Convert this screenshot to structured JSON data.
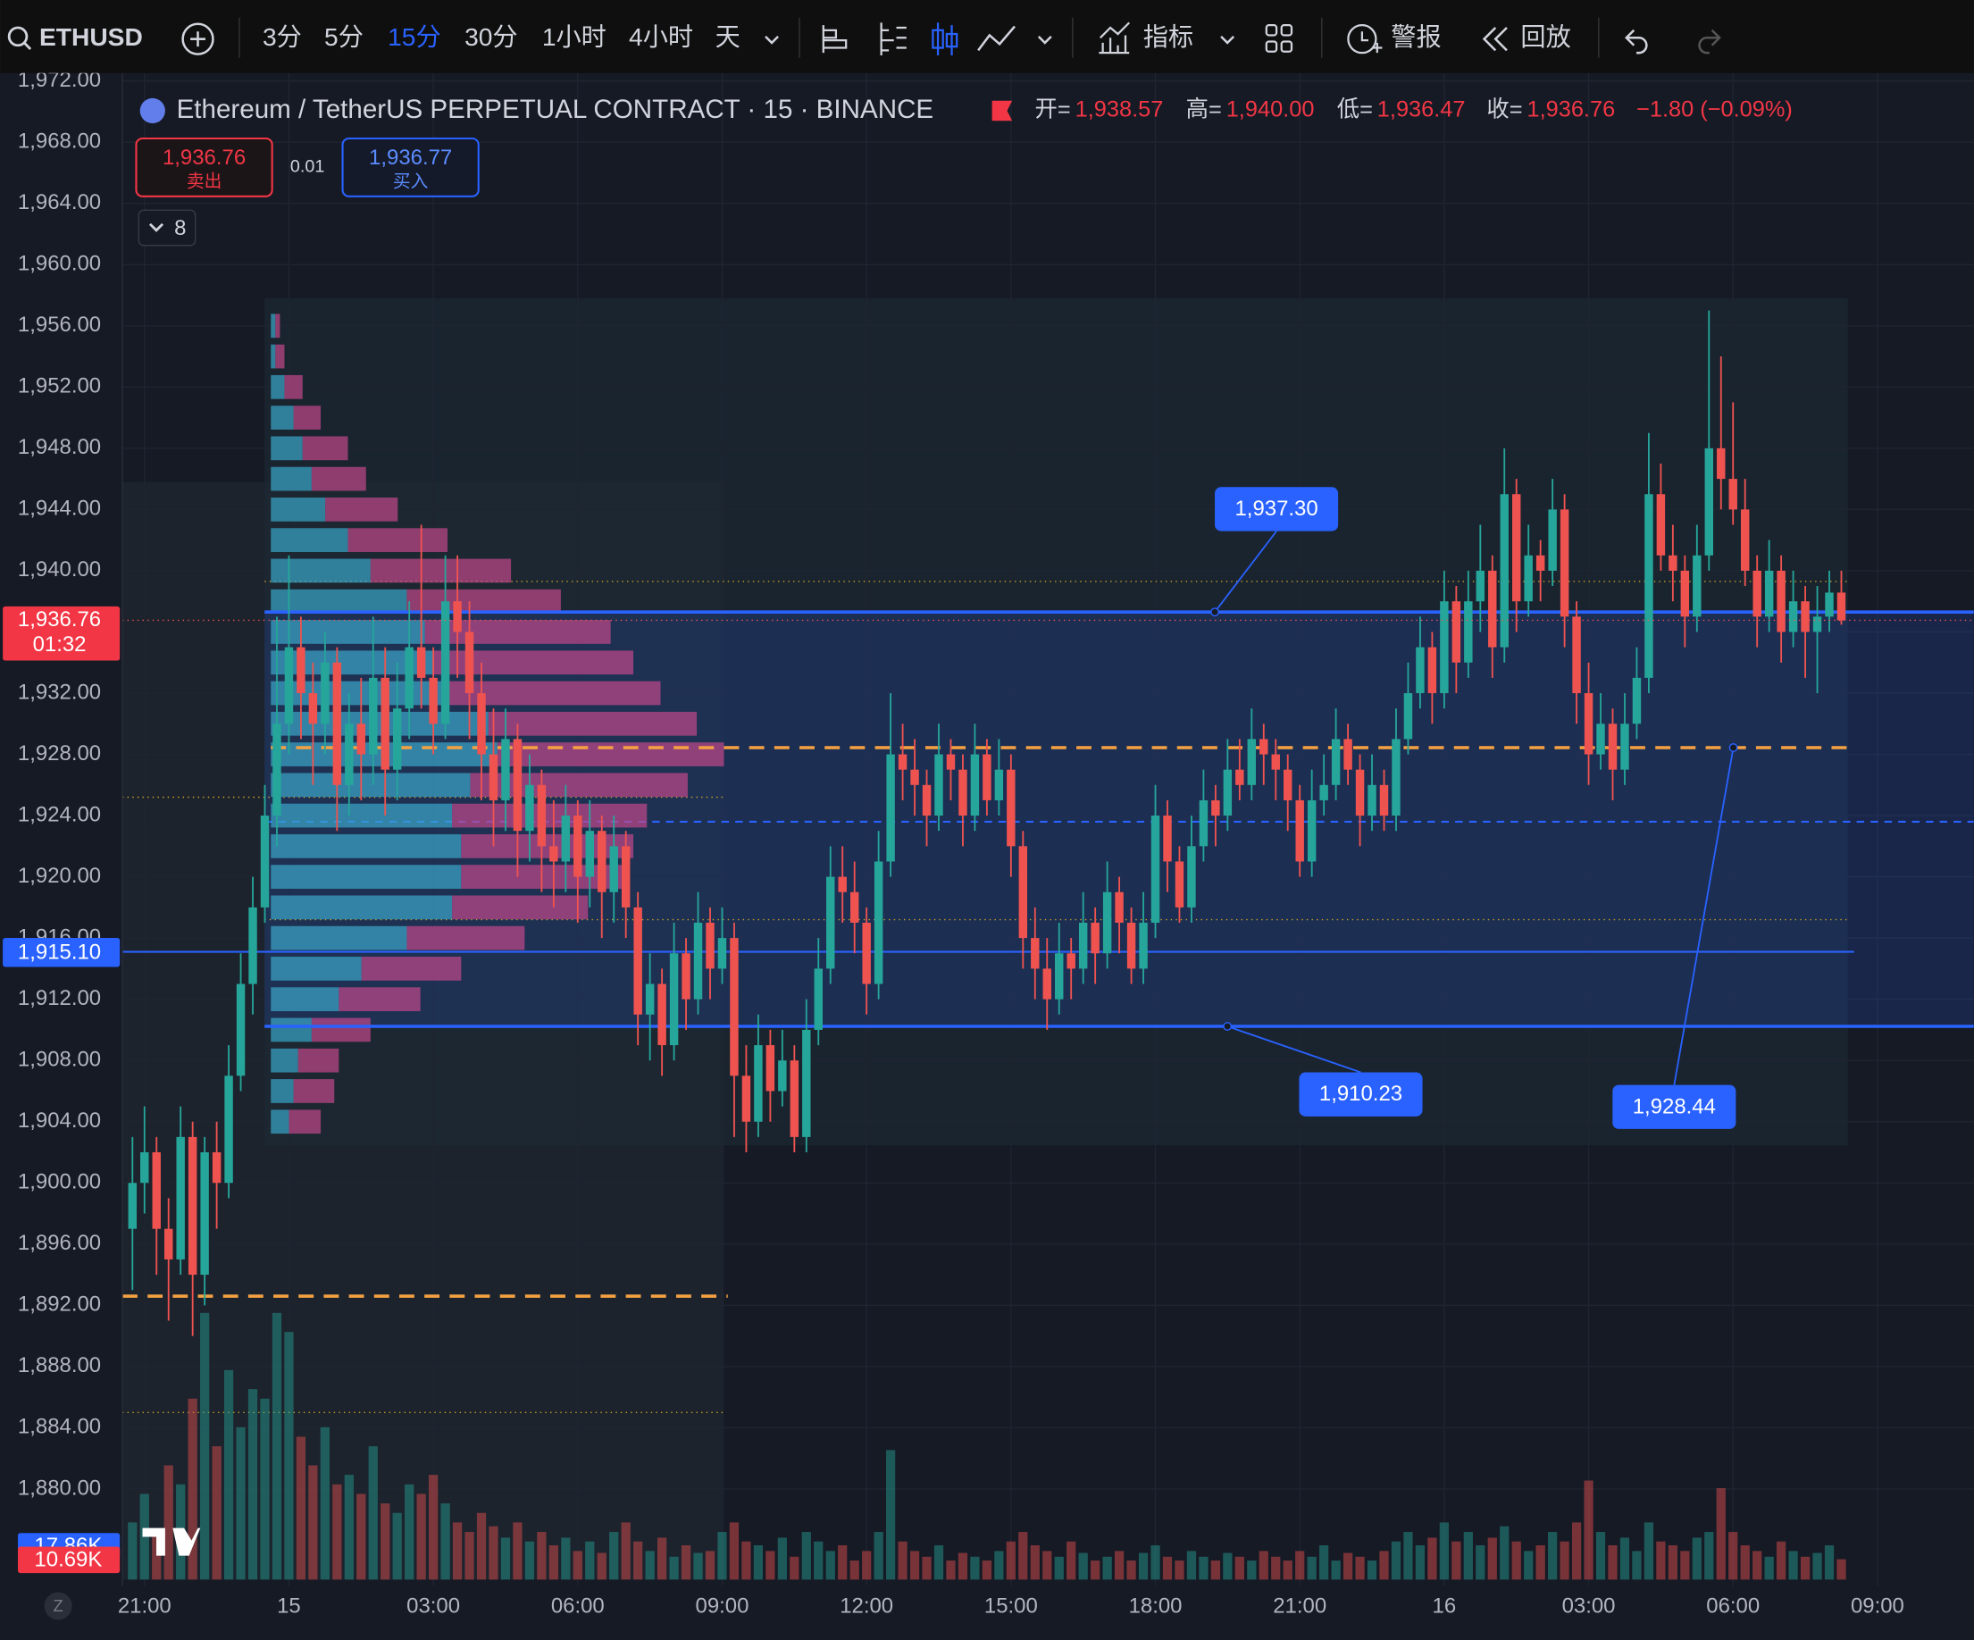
{
  "toolbar": {
    "symbol": "ETHUSD",
    "intervals": [
      "3分",
      "5分",
      "15分",
      "30分",
      "1小时",
      "4小时",
      "天"
    ],
    "indicators": "指标",
    "alerts": "警报",
    "replay": "回放"
  },
  "legend": {
    "title": "Ethereum / TetherUS PERPETUAL CONTRACT · 15 · BINANCE",
    "open_label": "开=",
    "high_label": "高=",
    "low_label": "低=",
    "close_label": "收=",
    "change": "−1.80 (−0.09%)"
  },
  "trade": {
    "sell_price": "1,936.76",
    "sell": "卖出",
    "spread": "0.01",
    "buy_price": "1,936.77",
    "buy": "买入",
    "indicator_count": "8"
  },
  "chart_data": {
    "type": "candlestick",
    "up_color": "#26a69a",
    "down_color": "#ef5350",
    "ylim": [
      1873.67,
      1972.52
    ],
    "yticks": [
      {
        "value": 1972,
        "label": "1,972.00"
      },
      {
        "value": 1968,
        "label": "1,968.00"
      },
      {
        "value": 1964,
        "label": "1,964.00"
      },
      {
        "value": 1960,
        "label": "1,960.00"
      },
      {
        "value": 1956,
        "label": "1,956.00"
      },
      {
        "value": 1952,
        "label": "1,952.00"
      },
      {
        "value": 1948,
        "label": "1,948.00"
      },
      {
        "value": 1944,
        "label": "1,944.00"
      },
      {
        "value": 1940,
        "label": "1,940.00"
      },
      {
        "value": 1936,
        "label": "1,936.00"
      },
      {
        "value": 1932,
        "label": "1,932.00"
      },
      {
        "value": 1928,
        "label": "1,928.00"
      },
      {
        "value": 1924,
        "label": "1,924.00"
      },
      {
        "value": 1920,
        "label": "1,920.00"
      },
      {
        "value": 1916,
        "label": "1,916.00"
      },
      {
        "value": 1912,
        "label": "1,912.00"
      },
      {
        "value": 1908,
        "label": "1,908.00"
      },
      {
        "value": 1904,
        "label": "1,904.00"
      },
      {
        "value": 1900,
        "label": "1,900.00"
      },
      {
        "value": 1896,
        "label": "1,896.00"
      },
      {
        "value": 1892,
        "label": "1,892.00"
      },
      {
        "value": 1888,
        "label": "1,888.00"
      },
      {
        "value": 1884,
        "label": "1,884.00"
      },
      {
        "value": 1880,
        "label": "1,880.00"
      }
    ],
    "xlim": [
      -0.84,
      153
    ],
    "xticks": [
      {
        "value": 1,
        "label": "21:00"
      },
      {
        "value": 13,
        "label": "15"
      },
      {
        "value": 25,
        "label": "03:00"
      },
      {
        "value": 37,
        "label": "06:00"
      },
      {
        "value": 49,
        "label": "09:00"
      },
      {
        "value": 61,
        "label": "12:00"
      },
      {
        "value": 73,
        "label": "15:00"
      },
      {
        "value": 85,
        "label": "18:00"
      },
      {
        "value": 97,
        "label": "21:00"
      },
      {
        "value": 109,
        "label": "16"
      },
      {
        "value": 121,
        "label": "03:00"
      },
      {
        "value": 133,
        "label": "06:00"
      },
      {
        "value": 145,
        "label": "09:00"
      }
    ],
    "open": [
      1897,
      1900,
      1902,
      1897,
      1895,
      1903,
      1894,
      1902,
      1900,
      1907,
      1913,
      1918,
      1924,
      1930,
      1935,
      1932,
      1930,
      1934,
      1926,
      1930,
      1928,
      1933,
      1927,
      1931,
      1935,
      1933,
      1930,
      1938,
      1936,
      1932,
      1928,
      1925,
      1929,
      1923,
      1926,
      1922,
      1921,
      1924,
      1920,
      1923,
      1919,
      1922,
      1918,
      1911,
      1913,
      1909,
      1915,
      1912,
      1917,
      1914,
      1916,
      1907,
      1904,
      1909,
      1906,
      1908,
      1903,
      1910,
      1914,
      1920,
      1919,
      1917,
      1913,
      1921,
      1928,
      1927,
      1926,
      1924,
      1928,
      1927,
      1924,
      1928,
      1925,
      1927,
      1922,
      1916,
      1914,
      1912,
      1915,
      1914,
      1917,
      1915,
      1919,
      1917,
      1914,
      1917,
      1924,
      1921,
      1918,
      1922,
      1925,
      1924,
      1927,
      1926,
      1929,
      1928,
      1927,
      1925,
      1921,
      1925,
      1926,
      1929,
      1927,
      1924,
      1926,
      1924,
      1929,
      1932,
      1935,
      1932,
      1938,
      1934,
      1938,
      1940,
      1935,
      1945,
      1938,
      1941,
      1940,
      1944,
      1937,
      1932,
      1928,
      1930,
      1927,
      1930,
      1933,
      1945,
      1941,
      1940,
      1937,
      1941,
      1948,
      1946,
      1944,
      1940,
      1937,
      1940,
      1936,
      1938,
      1936,
      1937,
      1938.57
    ],
    "high": [
      1903,
      1905,
      1903,
      1899,
      1905,
      1904,
      1903,
      1904,
      1909,
      1915,
      1920,
      1926,
      1937,
      1941,
      1937,
      1934,
      1936,
      1935,
      1932,
      1933,
      1937,
      1935,
      1934,
      1938,
      1943,
      1935,
      1941,
      1941,
      1938,
      1934,
      1931,
      1931,
      1930,
      1928,
      1927,
      1925,
      1926,
      1925,
      1925,
      1924,
      1924,
      1923,
      1919,
      1915,
      1914,
      1917,
      1916,
      1919,
      1918,
      1918,
      1917,
      1909,
      1911,
      1910,
      1910,
      1909,
      1912,
      1916,
      1922,
      1922,
      1921,
      1918,
      1923,
      1932,
      1930,
      1929,
      1927,
      1930,
      1929,
      1928,
      1930,
      1929,
      1929,
      1928,
      1923,
      1918,
      1916,
      1917,
      1916,
      1919,
      1918,
      1921,
      1920,
      1918,
      1919,
      1926,
      1925,
      1922,
      1924,
      1927,
      1926,
      1929,
      1929,
      1931,
      1930,
      1929,
      1928,
      1926,
      1927,
      1928,
      1931,
      1930,
      1928,
      1928,
      1927,
      1931,
      1934,
      1937,
      1936,
      1940,
      1939,
      1940,
      1943,
      1941,
      1948,
      1946,
      1943,
      1942,
      1946,
      1945,
      1938,
      1934,
      1932,
      1931,
      1932,
      1935,
      1949,
      1947,
      1943,
      1941,
      1943,
      1957,
      1954,
      1951,
      1946,
      1941,
      1942,
      1941,
      1940,
      1939,
      1939,
      1940,
      1940
    ],
    "low": [
      1893,
      1898,
      1894,
      1891,
      1894,
      1890,
      1892,
      1897,
      1899,
      1906,
      1911,
      1917,
      1922,
      1928,
      1929,
      1926,
      1928,
      1923,
      1924,
      1925,
      1926,
      1924,
      1925,
      1929,
      1931,
      1928,
      1929,
      1933,
      1929,
      1925,
      1922,
      1923,
      1920,
      1921,
      1919,
      1918,
      1919,
      1917,
      1918,
      1916,
      1917,
      1916,
      1909,
      1908,
      1907,
      1908,
      1910,
      1911,
      1912,
      1913,
      1903,
      1902,
      1903,
      1904,
      1905,
      1902,
      1902,
      1909,
      1913,
      1917,
      1915,
      1911,
      1912,
      1920,
      1925,
      1924,
      1922,
      1923,
      1925,
      1922,
      1923,
      1924,
      1924,
      1920,
      1914,
      1912,
      1910,
      1911,
      1912,
      1913,
      1913,
      1914,
      1915,
      1913,
      1913,
      1916,
      1919,
      1917,
      1917,
      1921,
      1922,
      1923,
      1925,
      1925,
      1926,
      1925,
      1923,
      1920,
      1920,
      1924,
      1925,
      1926,
      1922,
      1923,
      1923,
      1923,
      1928,
      1931,
      1930,
      1931,
      1932,
      1933,
      1936,
      1933,
      1934,
      1936,
      1937,
      1938,
      1939,
      1935,
      1930,
      1926,
      1927,
      1925,
      1926,
      1929,
      1932,
      1940,
      1938,
      1935,
      1936,
      1940,
      1944,
      1943,
      1939,
      1935,
      1936,
      1934,
      1935,
      1933,
      1932,
      1936,
      1936.47
    ],
    "close": [
      1900,
      1902,
      1897,
      1895,
      1903,
      1894,
      1902,
      1900,
      1907,
      1913,
      1918,
      1924,
      1930,
      1935,
      1932,
      1930,
      1934,
      1926,
      1930,
      1928,
      1933,
      1927,
      1931,
      1935,
      1933,
      1930,
      1938,
      1936,
      1932,
      1928,
      1925,
      1929,
      1923,
      1926,
      1922,
      1921,
      1924,
      1920,
      1923,
      1919,
      1922,
      1918,
      1911,
      1913,
      1909,
      1915,
      1912,
      1917,
      1914,
      1916,
      1907,
      1904,
      1909,
      1906,
      1908,
      1903,
      1910,
      1914,
      1920,
      1919,
      1917,
      1913,
      1921,
      1928,
      1927,
      1926,
      1924,
      1928,
      1927,
      1924,
      1928,
      1925,
      1927,
      1922,
      1916,
      1914,
      1912,
      1915,
      1914,
      1917,
      1915,
      1919,
      1917,
      1914,
      1917,
      1924,
      1921,
      1918,
      1922,
      1925,
      1924,
      1927,
      1926,
      1929,
      1928,
      1927,
      1925,
      1921,
      1925,
      1926,
      1929,
      1927,
      1924,
      1926,
      1924,
      1929,
      1932,
      1935,
      1932,
      1938,
      1934,
      1938,
      1940,
      1935,
      1945,
      1938,
      1941,
      1940,
      1944,
      1937,
      1932,
      1928,
      1930,
      1927,
      1930,
      1933,
      1945,
      1941,
      1940,
      1937,
      1941,
      1948,
      1946,
      1944,
      1940,
      1937,
      1940,
      1936,
      1938,
      1936,
      1937,
      1938.57,
      1936.76
    ],
    "ohlc_labels": [
      "1,938.57",
      "1,940.00",
      "1,936.47",
      "1,936.76"
    ],
    "vlim": [
      0,
      150
    ],
    "volume": [
      30,
      45,
      25,
      60,
      50,
      95,
      140,
      70,
      110,
      80,
      100,
      95,
      140,
      130,
      75,
      60,
      80,
      50,
      55,
      45,
      70,
      40,
      35,
      50,
      45,
      55,
      40,
      30,
      25,
      35,
      28,
      22,
      30,
      20,
      25,
      18,
      22,
      15,
      20,
      14,
      25,
      30,
      20,
      15,
      22,
      12,
      18,
      14,
      15,
      25,
      30,
      20,
      18,
      15,
      22,
      12,
      25,
      20,
      15,
      18,
      10,
      15,
      25,
      68,
      20,
      15,
      12,
      18,
      10,
      14,
      12,
      10,
      15,
      20,
      25,
      18,
      15,
      12,
      20,
      14,
      10,
      12,
      15,
      10,
      14,
      18,
      12,
      10,
      15,
      12,
      10,
      14,
      12,
      10,
      15,
      12,
      10,
      15,
      12,
      18,
      10,
      14,
      12,
      10,
      15,
      20,
      25,
      18,
      22,
      30,
      20,
      25,
      18,
      22,
      28,
      20,
      15,
      18,
      25,
      20,
      30,
      52,
      25,
      18,
      22,
      15,
      30,
      20,
      18,
      15,
      22,
      25,
      48,
      25,
      18,
      15,
      12,
      20,
      15,
      12,
      14,
      18,
      10.69
    ],
    "volume_labels": [
      {
        "value": 17.86,
        "label": "17.86K"
      },
      {
        "value": 10.69,
        "label": "10.69K"
      }
    ],
    "current_price": {
      "value": 1936.76,
      "label": "1,936.76",
      "countdown": "01:32"
    },
    "vwap": {
      "value": 1915.1,
      "label": "1,915.10"
    },
    "levels": {
      "range_high": {
        "value": 1937.3,
        "label": "1,937.30"
      },
      "range_low": {
        "value": 1910.23,
        "label": "1,910.23"
      },
      "poc": {
        "value": 1928.44,
        "label": "1,928.44"
      },
      "midline": 1923.6,
      "value_area": [
        1939.3,
        1917.2
      ],
      "session_levels": [
        1925.2,
        1885.0
      ],
      "session_poc": 1892.6
    },
    "volume_profile": {
      "prices": [
        1904,
        1906,
        1908,
        1910,
        1912,
        1914,
        1916,
        1918,
        1920,
        1922,
        1924,
        1926,
        1928,
        1930,
        1932,
        1934,
        1936,
        1938,
        1940,
        1942,
        1944,
        1946,
        1948,
        1950,
        1952,
        1954,
        1956
      ],
      "up": [
        4,
        5,
        6,
        9,
        15,
        20,
        30,
        40,
        42,
        42,
        40,
        44,
        50,
        48,
        38,
        36,
        34,
        30,
        22,
        17,
        12,
        9,
        7,
        5,
        3,
        1,
        1
      ],
      "down": [
        7,
        9,
        9,
        13,
        18,
        22,
        26,
        30,
        36,
        38,
        43,
        48,
        50,
        46,
        48,
        44,
        41,
        34,
        31,
        22,
        16,
        12,
        10,
        6,
        4,
        2,
        1
      ],
      "max": 100
    }
  }
}
